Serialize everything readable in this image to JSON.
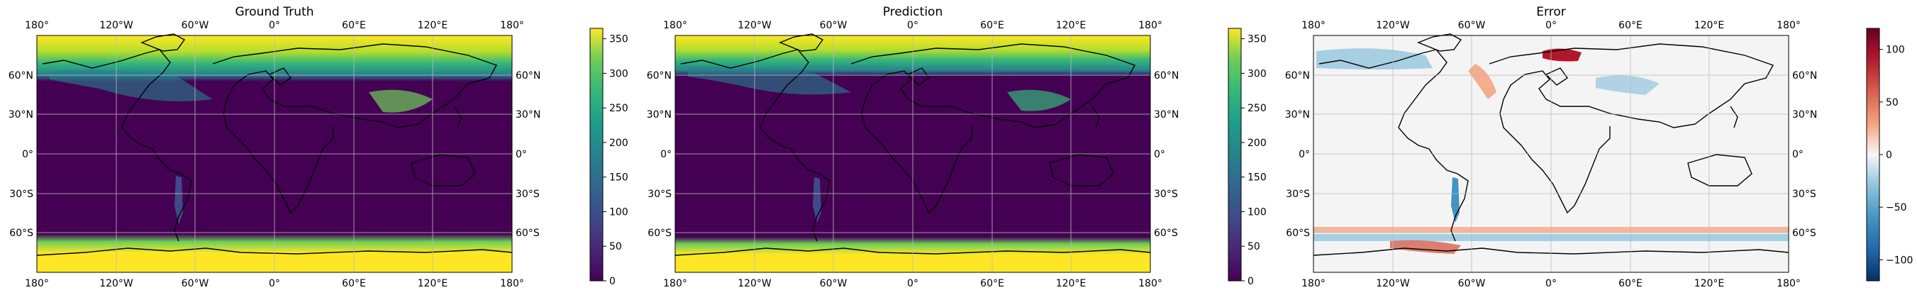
{
  "chart_data": [
    {
      "type": "heatmap",
      "title": "Ground Truth",
      "colormap": "viridis",
      "x_ticks": [
        "180°",
        "120°W",
        "60°W",
        "0°",
        "60°E",
        "120°E",
        "180°"
      ],
      "y_ticks": [
        "60°N",
        "30°N",
        "0°",
        "30°S",
        "60°S"
      ],
      "colorbar": {
        "range": [
          0,
          365
        ],
        "ticks": [
          0,
          50,
          100,
          150,
          200,
          250,
          300,
          350
        ]
      },
      "grid": true
    },
    {
      "type": "heatmap",
      "title": "Prediction",
      "colormap": "viridis",
      "x_ticks": [
        "180°",
        "120°W",
        "60°W",
        "0°",
        "60°E",
        "120°E",
        "180°"
      ],
      "y_ticks": [
        "60°N",
        "30°N",
        "0°",
        "30°S",
        "60°S"
      ],
      "colorbar": {
        "range": [
          0,
          365
        ],
        "ticks": [
          0,
          50,
          100,
          150,
          200,
          250,
          300,
          350
        ]
      },
      "grid": true
    },
    {
      "type": "heatmap",
      "title": "Error",
      "colormap": "RdBu_r",
      "x_ticks": [
        "180°",
        "120°W",
        "60°W",
        "0°",
        "60°E",
        "120°E",
        "180°"
      ],
      "y_ticks": [
        "60°N",
        "30°N",
        "0°",
        "30°S",
        "60°S"
      ],
      "colorbar": {
        "range": [
          -120,
          120
        ],
        "ticks": [
          -100,
          -50,
          0,
          50,
          100
        ]
      },
      "grid": true
    }
  ]
}
